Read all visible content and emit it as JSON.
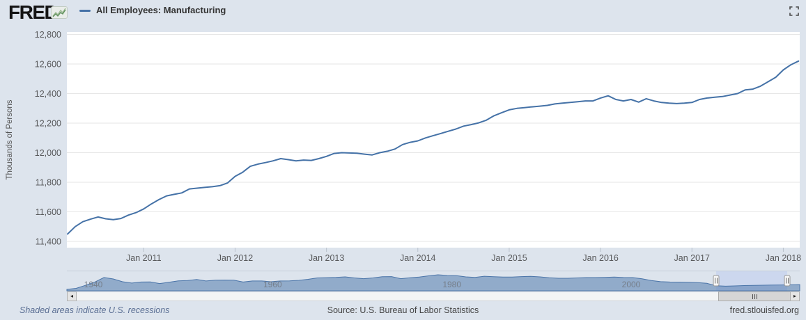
{
  "header": {
    "brand": "FRED",
    "registered_mark": "®",
    "sparkline_icon": "green-line-chart",
    "series_label": "All Employees: Manufacturing",
    "fullscreen_icon": "expand-corners"
  },
  "chart_data": {
    "type": "line",
    "title": "All Employees: Manufacturing",
    "ylabel": "Thousands of Persons",
    "ylim": [
      11330,
      12850
    ],
    "grid": "horizontal-only",
    "y_ticks": [
      11400,
      11600,
      11800,
      12000,
      12200,
      12400,
      12600,
      12800
    ],
    "x_ticks": [
      {
        "label": "Jan 2011",
        "year": 2011
      },
      {
        "label": "Jan 2012",
        "year": 2012
      },
      {
        "label": "Jan 2013",
        "year": 2013
      },
      {
        "label": "Jan 2014",
        "year": 2014
      },
      {
        "label": "Jan 2015",
        "year": 2015
      },
      {
        "label": "Jan 2016",
        "year": 2016
      },
      {
        "label": "Jan 2017",
        "year": 2017
      },
      {
        "label": "Jan 2018",
        "year": 2018
      }
    ],
    "series": {
      "name": "All Employees: Manufacturing",
      "color": "#4572a7",
      "frequency": "monthly",
      "start": "2010-03",
      "end": "2018-03",
      "values": [
        11450,
        11500,
        11533,
        11550,
        11565,
        11553,
        11547,
        11555,
        11578,
        11595,
        11620,
        11653,
        11683,
        11708,
        11718,
        11728,
        11755,
        11760,
        11765,
        11770,
        11777,
        11795,
        11840,
        11868,
        11908,
        11923,
        11933,
        11945,
        11960,
        11953,
        11945,
        11950,
        11948,
        11960,
        11975,
        11995,
        12000,
        11998,
        11996,
        11990,
        11985,
        12000,
        12010,
        12025,
        12055,
        12070,
        12080,
        12100,
        12115,
        12130,
        12145,
        12160,
        12180,
        12190,
        12202,
        12220,
        12250,
        12270,
        12290,
        12300,
        12305,
        12310,
        12315,
        12320,
        12330,
        12335,
        12340,
        12345,
        12350,
        12350,
        12370,
        12385,
        12360,
        12350,
        12360,
        12342,
        12365,
        12350,
        12340,
        12335,
        12332,
        12335,
        12340,
        12360,
        12370,
        12375,
        12380,
        12390,
        12400,
        12425,
        12430,
        12450,
        12480,
        12510,
        12560,
        12595,
        12620
      ]
    }
  },
  "navigator": {
    "description": "full-history range selector",
    "year_ticks": [
      {
        "label": "1940",
        "year": 1940
      },
      {
        "label": "1960",
        "year": 1960
      },
      {
        "label": "1980",
        "year": 1980
      },
      {
        "label": "2000",
        "year": 2000
      }
    ],
    "selection": {
      "start_year": 2010,
      "end_year": 2018
    },
    "series": {
      "frequency": "annual",
      "start_year": 1939,
      "end_year": 2018,
      "values": [
        9400,
        10100,
        12100,
        14200,
        17300,
        16300,
        14500,
        13600,
        14300,
        14330,
        13300,
        14100,
        15100,
        15300,
        16000,
        15000,
        15500,
        15600,
        15500,
        14300,
        15000,
        15000,
        14500,
        15000,
        15100,
        15400,
        16100,
        17000,
        17200,
        17400,
        17700,
        17000,
        16500,
        17000,
        17800,
        17900,
        16500,
        17100,
        17600,
        18400,
        19100,
        18600,
        18500,
        17700,
        17400,
        18100,
        17800,
        17550,
        17600,
        17900,
        18000,
        17700,
        17100,
        16800,
        16800,
        17000,
        17250,
        17230,
        17400,
        17560,
        17300,
        17260,
        16400,
        15260,
        14510,
        14315,
        14230,
        14160,
        13880,
        13400,
        11850,
        11530,
        11730,
        11930,
        12020,
        12180,
        12330,
        12350,
        12440,
        12600
      ]
    }
  },
  "scrollbar": {
    "left_arrow": "◂",
    "right_arrow": "▸",
    "grip_icon": "grip-lines"
  },
  "footer": {
    "note": "Shaded areas indicate U.S. recessions",
    "source": "Source: U.S. Bureau of Labor Statistics",
    "site": "fred.stlouisfed.org"
  },
  "colors": {
    "accent": "#4572a7",
    "page_bg": "#dde4ed",
    "plot_bg": "#ffffff",
    "gridline": "#e6e6e6",
    "nav_fill": "rgba(69,114,167,0.5)",
    "nav_selection_bg": "#ccd7ee"
  }
}
